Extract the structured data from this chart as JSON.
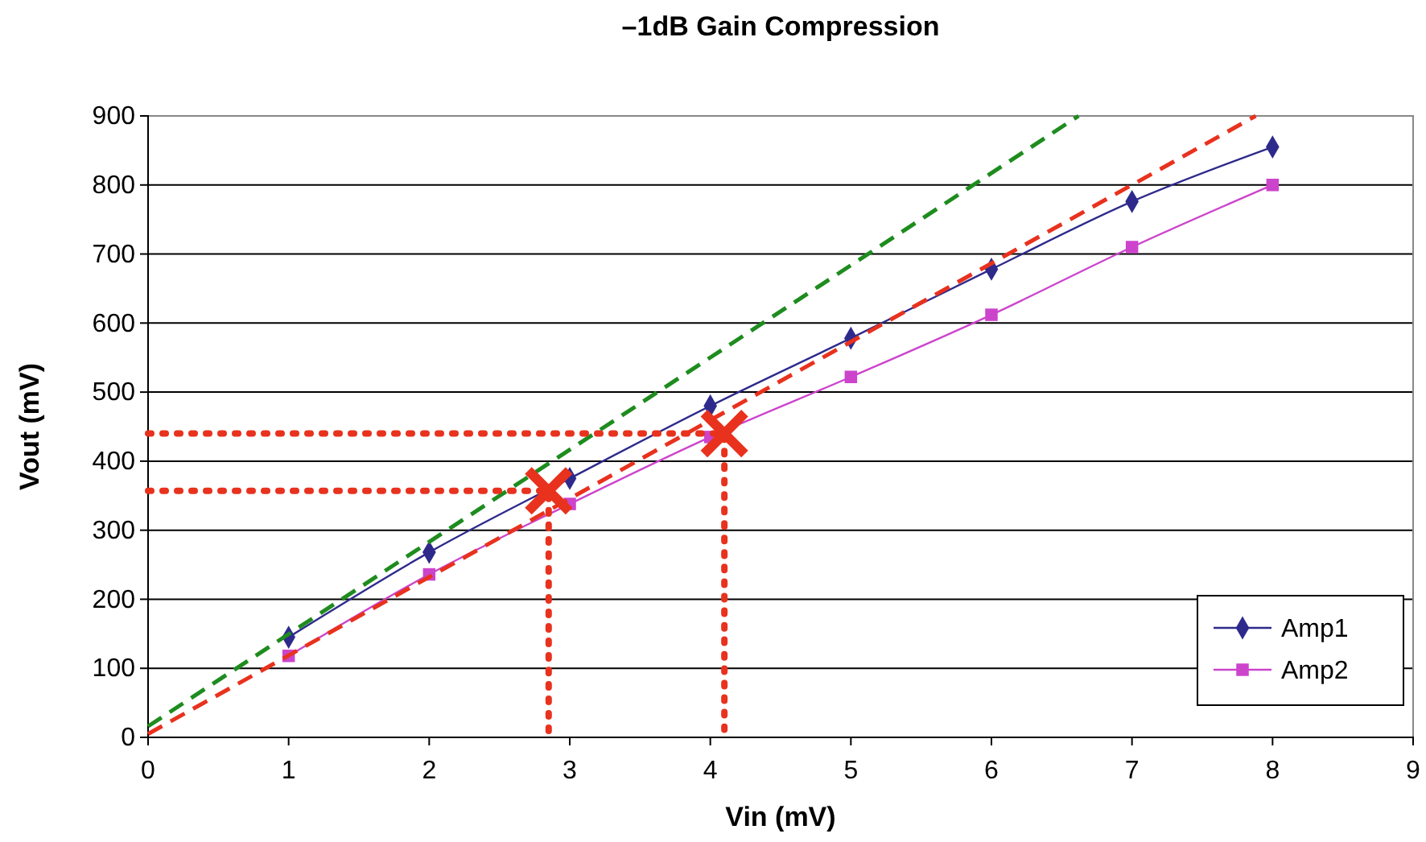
{
  "chart_data": {
    "type": "line",
    "title": "–1dB Gain Compression",
    "xlabel": "Vin (mV)",
    "ylabel": "Vout (mV)",
    "x": [
      1,
      2,
      3,
      4,
      5,
      6,
      7,
      8
    ],
    "xlim": [
      0,
      9
    ],
    "ylim": [
      0,
      900
    ],
    "xticks": [
      0,
      1,
      2,
      3,
      4,
      5,
      6,
      7,
      8,
      9
    ],
    "yticks": [
      0,
      100,
      200,
      300,
      400,
      500,
      600,
      700,
      800,
      900
    ],
    "grid": "y",
    "legend": "bottom right",
    "series": [
      {
        "name": "Amp1",
        "color": "#2e2a8c",
        "marker": "diamond",
        "values": [
          145,
          268,
          375,
          480,
          578,
          678,
          776,
          855
        ]
      },
      {
        "name": "Amp2",
        "color": "#cc44cc",
        "marker": "square",
        "values": [
          118,
          236,
          338,
          435,
          522,
          612,
          710,
          800
        ]
      },
      {
        "type": "line",
        "color": "#1e8c1e",
        "line_style": "dashed",
        "marker": "none",
        "x": [
          0,
          6.62
        ],
        "values": [
          16,
          900
        ]
      },
      {
        "type": "line",
        "color": "#e8321e",
        "line_style": "dashed",
        "marker": "none",
        "x": [
          0,
          7.88
        ],
        "values": [
          5,
          900
        ]
      },
      {
        "type": "line",
        "color": "#e8321e",
        "line_style": "dotted",
        "marker": "none",
        "x": [
          0,
          2.85,
          2.85
        ],
        "values": [
          357,
          357,
          0
        ]
      },
      {
        "type": "line",
        "color": "#e8321e",
        "line_style": "dotted",
        "marker": "none",
        "x": [
          0,
          4.1,
          4.1
        ],
        "values": [
          440,
          440,
          0
        ]
      },
      {
        "type": "scatter",
        "color": "#e8321e",
        "marker": "cross",
        "x": [
          2.85,
          4.1
        ],
        "values": [
          357,
          440
        ]
      }
    ]
  }
}
